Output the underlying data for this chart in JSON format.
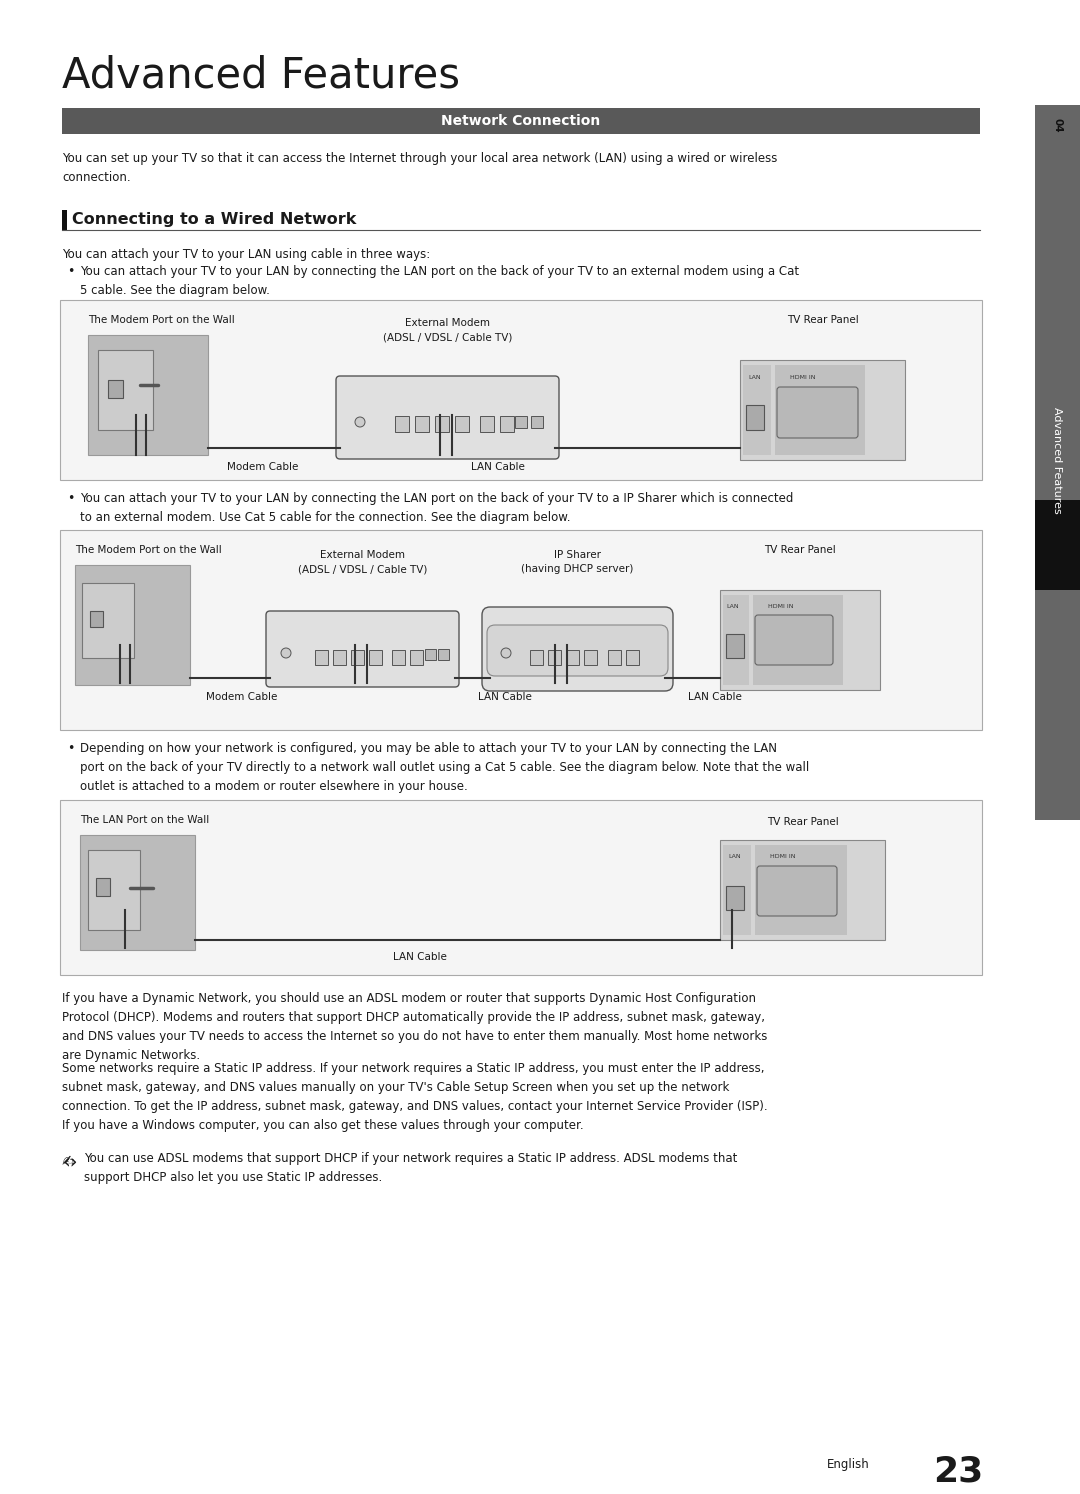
{
  "title": "Advanced Features",
  "section_header": "Network Connection",
  "section_header_bg": "#595959",
  "section_header_color": "#ffffff",
  "wired_network_title": "Connecting to a Wired Network",
  "intro_text": "You can set up your TV so that it can access the Internet through your local area network (LAN) using a wired or wireless\nconnection.",
  "three_ways_text": "You can attach your TV to your LAN using cable in three ways:",
  "bullet1_text": "You can attach your TV to your LAN by connecting the LAN port on the back of your TV to an external modem using a Cat\n5 cable. See the diagram below.",
  "bullet2_text": "You can attach your TV to your LAN by connecting the LAN port on the back of your TV to a IP Sharer which is connected\nto an external modem. Use Cat 5 cable for the connection. See the diagram below.",
  "bullet3_text": "Depending on how your network is configured, you may be able to attach your TV to your LAN by connecting the LAN\nport on the back of your TV directly to a network wall outlet using a Cat 5 cable. See the diagram below. Note that the wall\noutlet is attached to a modem or router elsewhere in your house.",
  "note_text": "You can use ADSL modems that support DHCP if your network requires a Static IP address. ADSL modems that\nsupport DHCP also let you use Static IP addresses.",
  "bottom_para1": "If you have a Dynamic Network, you should use an ADSL modem or router that supports Dynamic Host Configuration\nProtocol (DHCP). Modems and routers that support DHCP automatically provide the IP address, subnet mask, gateway,\nand DNS values your TV needs to access the Internet so you do not have to enter them manually. Most home networks\nare Dynamic Networks.",
  "bottom_para2": "Some networks require a Static IP address. If your network requires a Static IP address, you must enter the IP address,\nsubnet mask, gateway, and DNS values manually on your TV's Cable Setup Screen when you set up the network\nconnection. To get the IP address, subnet mask, gateway, and DNS values, contact your Internet Service Provider (ISP).\nIf you have a Windows computer, you can also get these values through your computer.",
  "page_number": "23",
  "bg_color": "#ffffff",
  "text_color": "#1a1a1a",
  "diagram1_labels": {
    "wall": "The Modem Port on the Wall",
    "modem": "External Modem\n(ADSL / VDSL / Cable TV)",
    "tv": "TV Rear Panel",
    "modem_cable": "Modem Cable",
    "lan_cable": "LAN Cable"
  },
  "diagram2_labels": {
    "wall": "The Modem Port on the Wall",
    "modem": "External Modem\n(ADSL / VDSL / Cable TV)",
    "ip_sharer": "IP Sharer\n(having DHCP server)",
    "tv": "TV Rear Panel",
    "modem_cable": "Modem Cable",
    "lan_cable1": "LAN Cable",
    "lan_cable2": "LAN Cable"
  },
  "diagram3_labels": {
    "wall": "The LAN Port on the Wall",
    "tv": "TV Rear Panel",
    "lan_cable": "LAN Cable"
  }
}
